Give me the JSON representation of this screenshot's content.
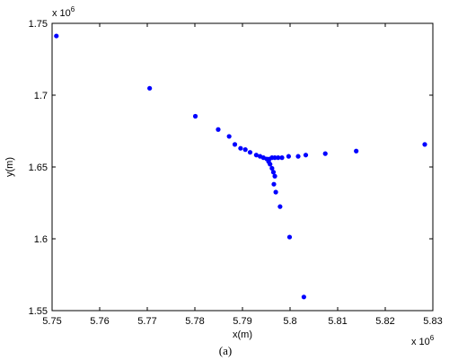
{
  "chart_data": {
    "type": "scatter",
    "title": "",
    "xlabel": "x(m)",
    "ylabel": "y(m)",
    "xlim": [
      5.75,
      5.83
    ],
    "ylim": [
      1.55,
      1.75
    ],
    "x_exponent_label": "x 10",
    "x_exponent": "6",
    "y_exponent_label": "x 10",
    "y_exponent": "6",
    "xticks": [
      "5.75",
      "5.76",
      "5.77",
      "5.78",
      "5.79",
      "5.8",
      "5.81",
      "5.82",
      "5.83"
    ],
    "yticks": [
      "1.55",
      "1.6",
      "1.65",
      "1.7",
      "1.75"
    ],
    "xtick_values": [
      5.75,
      5.76,
      5.77,
      5.78,
      5.79,
      5.8,
      5.81,
      5.82,
      5.83
    ],
    "ytick_values": [
      1.55,
      1.6,
      1.65,
      1.7,
      1.75
    ],
    "grid": false,
    "marker_color": "#0000ff",
    "series": [
      {
        "points": [
          [
            5.7509,
            1.7412
          ],
          [
            5.7705,
            1.7048
          ],
          [
            5.7801,
            1.6853
          ],
          [
            5.7849,
            1.6761
          ],
          [
            5.7872,
            1.6713
          ],
          [
            5.7884,
            1.6657
          ],
          [
            5.7896,
            1.663
          ],
          [
            5.7906,
            1.6621
          ],
          [
            5.7916,
            1.6602
          ],
          [
            5.7929,
            1.6583
          ],
          [
            5.7937,
            1.6574
          ],
          [
            5.7944,
            1.6565
          ],
          [
            5.7951,
            1.6556
          ],
          [
            5.7955,
            1.6537
          ],
          [
            5.7958,
            1.6519
          ],
          [
            5.7962,
            1.6491
          ],
          [
            5.7965,
            1.6464
          ],
          [
            5.7968,
            1.6436
          ],
          [
            5.7966,
            1.638
          ],
          [
            5.797,
            1.6325
          ],
          [
            5.7979,
            1.6224
          ],
          [
            5.7999,
            1.6012
          ],
          [
            5.8029,
            1.5595
          ],
          [
            5.7956,
            1.6555
          ],
          [
            5.7962,
            1.6565
          ],
          [
            5.7968,
            1.6565
          ],
          [
            5.7975,
            1.6565
          ],
          [
            5.7983,
            1.6565
          ],
          [
            5.7997,
            1.6574
          ],
          [
            5.8017,
            1.6574
          ],
          [
            5.8033,
            1.6583
          ],
          [
            5.8074,
            1.6593
          ],
          [
            5.8139,
            1.6611
          ],
          [
            5.8283,
            1.6657
          ]
        ]
      }
    ]
  },
  "caption": "(a)"
}
